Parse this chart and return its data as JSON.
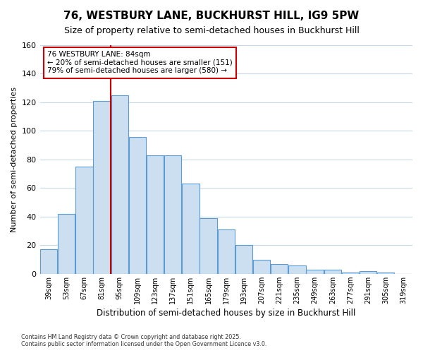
{
  "title": "76, WESTBURY LANE, BUCKHURST HILL, IG9 5PW",
  "subtitle": "Size of property relative to semi-detached houses in Buckhurst Hill",
  "xlabel": "Distribution of semi-detached houses by size in Buckhurst Hill",
  "ylabel": "Number of semi-detached properties",
  "footnote1": "Contains HM Land Registry data © Crown copyright and database right 2025.",
  "footnote2": "Contains public sector information licensed under the Open Government Licence v3.0.",
  "bar_labels": [
    "39sqm",
    "53sqm",
    "67sqm",
    "81sqm",
    "95sqm",
    "109sqm",
    "123sqm",
    "137sqm",
    "151sqm",
    "165sqm",
    "179sqm",
    "193sqm",
    "207sqm",
    "221sqm",
    "235sqm",
    "249sqm",
    "263sqm",
    "277sqm",
    "291sqm",
    "305sqm",
    "319sqm"
  ],
  "bar_values": [
    17,
    42,
    75,
    121,
    125,
    96,
    83,
    83,
    63,
    39,
    31,
    20,
    10,
    7,
    6,
    3,
    3,
    1,
    2,
    1,
    0
  ],
  "bar_color": "#ccdff0",
  "bar_edge_color": "#5b9bd5",
  "ylim": [
    0,
    160
  ],
  "yticks": [
    0,
    20,
    40,
    60,
    80,
    100,
    120,
    140,
    160
  ],
  "property_label": "76 WESTBURY LANE: 84sqm",
  "pct_smaller": 20,
  "count_smaller": 151,
  "pct_larger": 79,
  "count_larger": 580,
  "vline_bin_index": 3,
  "annotation_box_color": "#ffffff",
  "annotation_border_color": "#cc0000",
  "vline_color": "#cc0000",
  "background_color": "#ffffff",
  "grid_color": "#c8d8e8",
  "title_fontsize": 11,
  "subtitle_fontsize": 9
}
